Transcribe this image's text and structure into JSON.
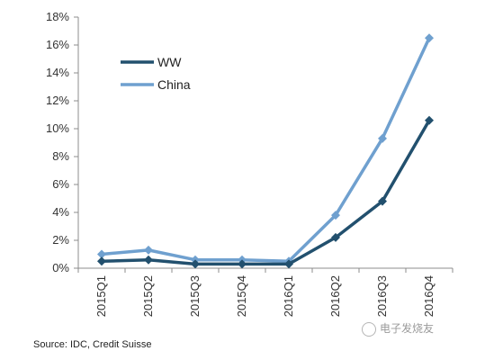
{
  "chart_data": {
    "type": "line",
    "categories": [
      "2015Q1",
      "2015Q2",
      "2015Q3",
      "2015Q4",
      "2016Q1",
      "2016Q2",
      "2016Q3",
      "2016Q4"
    ],
    "series": [
      {
        "name": "WW",
        "values": [
          0.5,
          0.6,
          0.3,
          0.3,
          0.3,
          2.2,
          4.8,
          10.6
        ],
        "color": "#22506e"
      },
      {
        "name": "China",
        "values": [
          1.0,
          1.3,
          0.6,
          0.6,
          0.5,
          3.8,
          9.3,
          16.5
        ],
        "color": "#6fa0cf"
      }
    ],
    "ylim": [
      0,
      18
    ],
    "yticks": [
      0,
      2,
      4,
      6,
      8,
      10,
      12,
      14,
      16,
      18
    ],
    "ytick_labels": [
      "0%",
      "2%",
      "4%",
      "6%",
      "8%",
      "10%",
      "12%",
      "14%",
      "16%",
      "18%"
    ],
    "grid": false,
    "legend": "upper-left"
  },
  "source_text": "Source: IDC, Credit Suisse",
  "watermark_text": "电子发烧友"
}
